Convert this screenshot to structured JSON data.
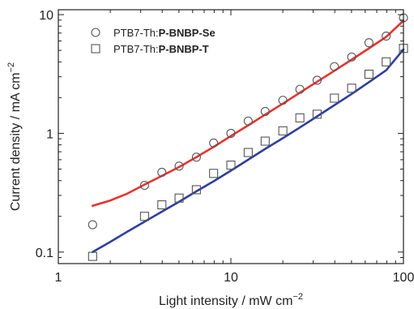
{
  "chart_data": {
    "type": "scatter",
    "xlabel": "Light intensity / mW cm",
    "xlabel_sup": "−2",
    "ylabel": "Current density / mA cm",
    "ylabel_sup": "−2",
    "xscale": "log",
    "yscale": "log",
    "xlim": [
      1,
      100
    ],
    "ylim": [
      0.08,
      11
    ],
    "x_ticks": [
      {
        "value": 1,
        "label": "1"
      },
      {
        "value": 10,
        "label": "10"
      },
      {
        "value": 100,
        "label": "100"
      }
    ],
    "y_ticks": [
      {
        "value": 0.1,
        "label": "0.1"
      },
      {
        "value": 1,
        "label": "1"
      },
      {
        "value": 10,
        "label": "10"
      }
    ],
    "grid": false,
    "legend_position": "top-left",
    "series": [
      {
        "legend_prefix": "PTB7-Th:",
        "legend_bold": "P-BNBP-Se",
        "marker": "circle",
        "fit_color": "#e8322d",
        "points": [
          [
            1.58,
            0.17
          ],
          [
            3.16,
            0.365
          ],
          [
            3.98,
            0.47
          ],
          [
            5.01,
            0.53
          ],
          [
            6.31,
            0.63
          ],
          [
            7.94,
            0.83
          ],
          [
            10.0,
            1.0
          ],
          [
            12.6,
            1.27
          ],
          [
            15.8,
            1.53
          ],
          [
            20.0,
            1.9
          ],
          [
            25.1,
            2.35
          ],
          [
            31.6,
            2.8
          ],
          [
            39.8,
            3.65
          ],
          [
            50.1,
            4.4
          ],
          [
            63.1,
            5.8
          ],
          [
            79.4,
            6.6
          ],
          [
            100.0,
            9.4
          ]
        ],
        "fit": [
          [
            1.58,
            0.245
          ],
          [
            2.0,
            0.272
          ],
          [
            2.5,
            0.31
          ],
          [
            3.16,
            0.37
          ],
          [
            4.0,
            0.44
          ],
          [
            5.0,
            0.52
          ],
          [
            6.31,
            0.63
          ],
          [
            7.94,
            0.77
          ],
          [
            10.0,
            0.95
          ],
          [
            12.6,
            1.17
          ],
          [
            15.8,
            1.44
          ],
          [
            20.0,
            1.78
          ],
          [
            25.1,
            2.2
          ],
          [
            31.6,
            2.72
          ],
          [
            39.8,
            3.37
          ],
          [
            50.1,
            4.18
          ],
          [
            63.1,
            5.2
          ],
          [
            79.4,
            6.5
          ],
          [
            100.0,
            8.9
          ]
        ]
      },
      {
        "legend_prefix": "PTB7-Th:",
        "legend_bold": "P-BNBP-T",
        "marker": "square",
        "fit_color": "#2e3f9e",
        "points": [
          [
            1.58,
            0.092
          ],
          [
            3.16,
            0.2
          ],
          [
            3.98,
            0.25
          ],
          [
            5.01,
            0.285
          ],
          [
            6.31,
            0.335
          ],
          [
            7.94,
            0.46
          ],
          [
            10.0,
            0.54
          ],
          [
            12.6,
            0.69
          ],
          [
            15.8,
            0.86
          ],
          [
            20.0,
            1.05
          ],
          [
            25.1,
            1.35
          ],
          [
            31.6,
            1.45
          ],
          [
            39.8,
            1.98
          ],
          [
            50.1,
            2.4
          ],
          [
            63.1,
            3.15
          ],
          [
            79.4,
            4.0
          ],
          [
            100.0,
            5.2
          ]
        ],
        "fit": [
          [
            1.58,
            0.1
          ],
          [
            2.0,
            0.122
          ],
          [
            2.5,
            0.148
          ],
          [
            3.16,
            0.18
          ],
          [
            4.0,
            0.22
          ],
          [
            5.0,
            0.265
          ],
          [
            6.31,
            0.325
          ],
          [
            7.94,
            0.395
          ],
          [
            10.0,
            0.485
          ],
          [
            12.6,
            0.6
          ],
          [
            15.8,
            0.74
          ],
          [
            20.0,
            0.91
          ],
          [
            25.1,
            1.12
          ],
          [
            31.6,
            1.39
          ],
          [
            39.8,
            1.73
          ],
          [
            50.1,
            2.15
          ],
          [
            63.1,
            2.7
          ],
          [
            79.4,
            3.4
          ],
          [
            100.0,
            5.1
          ]
        ]
      }
    ]
  }
}
